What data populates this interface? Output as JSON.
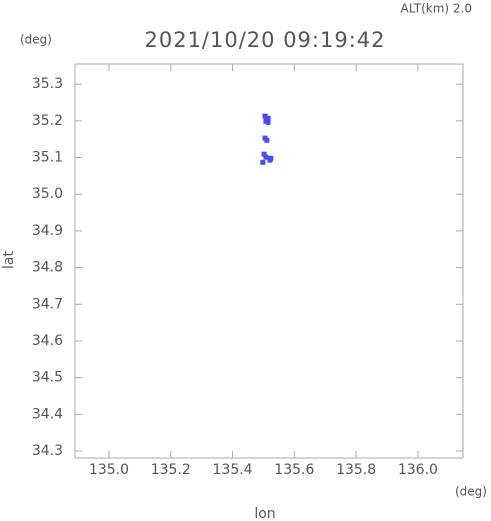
{
  "chart_data": {
    "type": "scatter",
    "title": "2021/10/20 09:19:42",
    "subtitle": "ALT(km) 2.0",
    "y_unit": "(deg)",
    "x_unit": "(deg)",
    "xlabel": "lon",
    "ylabel": "lat",
    "x": [
      135.505,
      135.515,
      135.508,
      135.515,
      135.505,
      135.511,
      135.502,
      135.508,
      135.524,
      135.498,
      135.521
    ],
    "values": [
      35.213,
      35.207,
      35.199,
      35.196,
      35.153,
      35.147,
      35.109,
      35.101,
      35.098,
      35.087,
      35.093
    ],
    "color": "#4a4aff",
    "xlim": [
      134.89,
      136.146
    ],
    "ylim": [
      34.281,
      35.355
    ],
    "xticks": [
      {
        "value": 135,
        "label": "135.0"
      },
      135.2,
      135.4,
      135.6,
      135.8,
      {
        "value": 136,
        "label": "136.0"
      }
    ],
    "yticks": [
      35.3,
      35.2,
      35.1,
      {
        "value": 35,
        "label": "35.0"
      },
      34.9,
      34.8,
      34.7,
      34.6,
      34.5,
      34.4,
      34.3
    ]
  }
}
